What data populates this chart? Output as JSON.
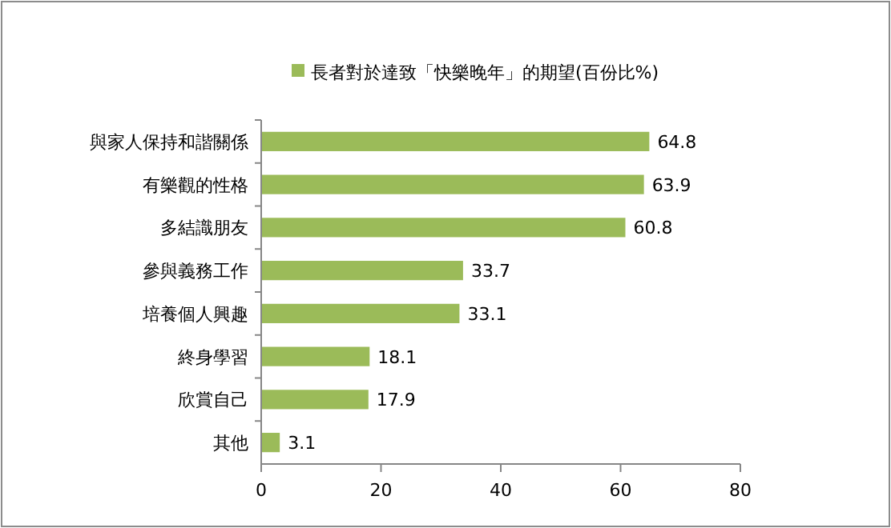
{
  "chart_data": {
    "type": "bar",
    "orientation": "horizontal",
    "categories": [
      "與家人保持和諧關係",
      "有樂觀的性格",
      "多結識朋友",
      "參與義務工作",
      "培養個人興趣",
      "終身學習",
      "欣賞自己",
      "其他"
    ],
    "series": [
      {
        "name": "長者對於達致「快樂晚年」的期望(百份比%)",
        "color": "#9bbb59",
        "values": [
          64.8,
          63.9,
          60.8,
          33.7,
          33.1,
          18.1,
          17.9,
          3.1
        ]
      }
    ],
    "xlim": [
      0,
      80
    ],
    "xticks": [
      0,
      20,
      40,
      60,
      80
    ],
    "data_labels": true,
    "legend": "top",
    "grid": false
  }
}
